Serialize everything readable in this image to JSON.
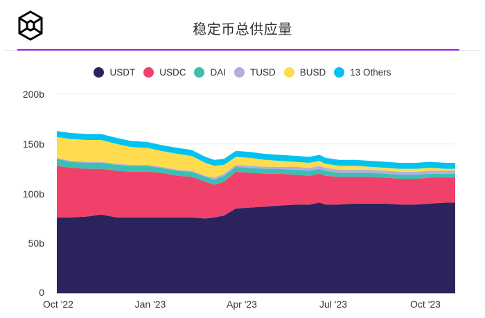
{
  "header": {
    "logo": "hexagon-cube-logo",
    "title": "稳定币总供应量"
  },
  "colors": {
    "accent_line": "#9b19e6",
    "USDT": "#2b245c",
    "USDC": "#f0416a",
    "DAI": "#3cbfb2",
    "TUSD": "#b3ade0",
    "BUSD": "#fedc4e",
    "Others": "#00c3f0"
  },
  "legend": [
    {
      "label": "USDT",
      "color": "#2b245c"
    },
    {
      "label": "USDC",
      "color": "#f0416a"
    },
    {
      "label": "DAI",
      "color": "#3cbfb2"
    },
    {
      "label": "TUSD",
      "color": "#b3ade0"
    },
    {
      "label": "BUSD",
      "color": "#fedc4e"
    },
    {
      "label": "13 Others",
      "color": "#00c3f0"
    }
  ],
  "axis": {
    "y_ticks": [
      "200b",
      "150b",
      "100b",
      "50b",
      "0"
    ],
    "x_ticks": [
      "Oct '22",
      "Jan '23",
      "Apr '23",
      "Jul '23",
      "Oct '23"
    ]
  },
  "chart_data": {
    "type": "area",
    "stacked": true,
    "title": "稳定币总供应量",
    "xlabel": "",
    "ylabel": "",
    "ylim": [
      0,
      200
    ],
    "y_ticks": [
      0,
      50,
      100,
      150,
      200
    ],
    "grid": true,
    "legend_position": "top",
    "x": [
      "2022-10-01",
      "2022-10-15",
      "2022-11-01",
      "2022-11-15",
      "2022-12-01",
      "2022-12-15",
      "2023-01-01",
      "2023-01-15",
      "2023-02-01",
      "2023-02-15",
      "2023-03-01",
      "2023-03-10",
      "2023-03-20",
      "2023-04-01",
      "2023-04-15",
      "2023-05-01",
      "2023-05-15",
      "2023-06-01",
      "2023-06-15",
      "2023-06-25",
      "2023-07-01",
      "2023-07-15",
      "2023-08-01",
      "2023-08-15",
      "2023-09-01",
      "2023-09-15",
      "2023-10-01",
      "2023-10-15",
      "2023-11-01",
      "2023-11-10"
    ],
    "x_tick_labels": [
      "Oct '22",
      "Jan '23",
      "Apr '23",
      "Jul '23",
      "Oct '23"
    ],
    "series": [
      {
        "name": "USDT",
        "values": [
          76,
          76,
          77,
          79,
          76,
          76,
          76,
          76,
          76,
          76,
          75,
          76,
          78,
          85,
          86,
          87,
          88,
          89,
          89,
          91,
          89,
          89,
          90,
          90,
          90,
          89,
          89,
          90,
          91,
          91
        ]
      },
      {
        "name": "USDC",
        "values": [
          52,
          50,
          48,
          46,
          47,
          46,
          46,
          45,
          42,
          41,
          37,
          33,
          34,
          37,
          35,
          33,
          32,
          30,
          29,
          29,
          29,
          28,
          27,
          27,
          26,
          26,
          26,
          26,
          25,
          25
        ]
      },
      {
        "name": "DAI",
        "values": [
          7,
          6,
          6,
          6,
          6,
          6,
          6,
          5,
          5,
          5,
          5,
          5,
          6,
          5,
          5,
          5,
          5,
          5,
          5,
          5,
          5,
          4,
          4,
          4,
          4,
          4,
          4,
          4,
          4,
          4
        ]
      },
      {
        "name": "TUSD",
        "values": [
          1,
          1,
          1,
          1,
          1,
          1,
          1,
          1,
          1,
          1,
          1,
          2,
          2,
          2,
          2,
          2,
          2,
          3,
          3,
          3,
          3,
          3,
          3,
          3,
          3,
          3,
          3,
          3,
          3,
          3
        ]
      },
      {
        "name": "BUSD",
        "values": [
          21,
          22,
          22,
          22,
          20,
          18,
          17,
          16,
          16,
          15,
          13,
          12,
          9,
          8,
          8,
          7,
          6,
          5,
          5,
          5,
          4,
          4,
          4,
          3,
          3,
          3,
          3,
          3,
          2,
          2
        ]
      },
      {
        "name": "13 Others",
        "values": [
          6,
          6,
          6,
          6,
          6,
          6,
          6,
          6,
          6,
          6,
          6,
          6,
          6,
          6,
          6,
          6,
          6,
          6,
          6,
          6,
          6,
          6,
          6,
          6,
          6,
          6,
          6,
          6,
          6,
          6
        ]
      }
    ]
  }
}
